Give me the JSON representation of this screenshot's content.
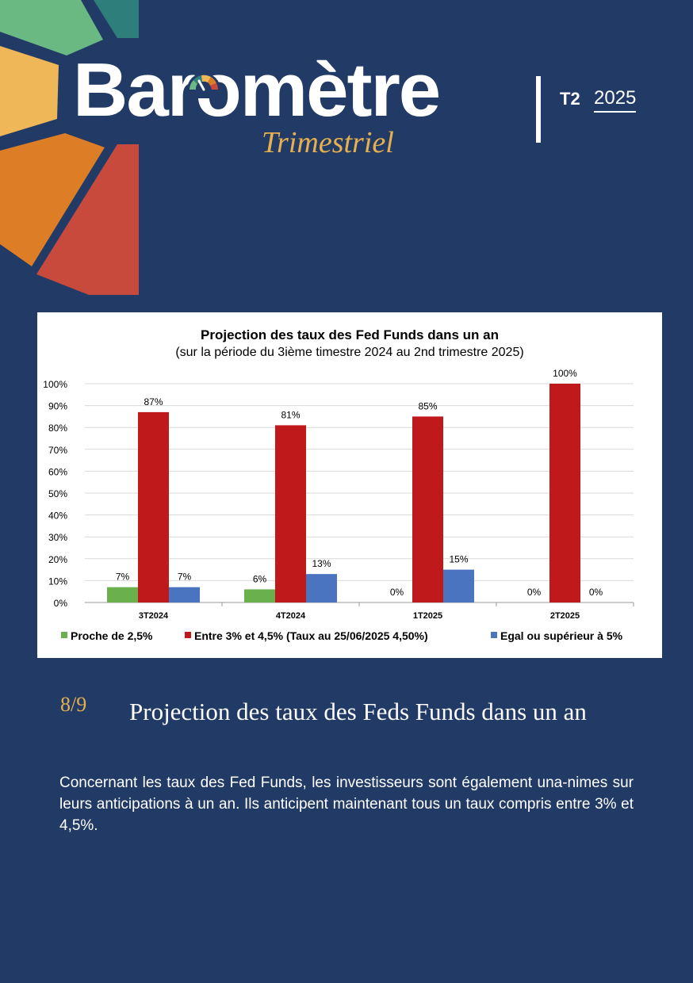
{
  "header": {
    "brand_title": "Baromètre",
    "brand_subtitle": "Trimestriel",
    "quarter": "T2",
    "year": "2025"
  },
  "colors": {
    "background": "#223b66",
    "green": "#6ab04c",
    "red": "#c0191b",
    "blue": "#4a73c0",
    "gold": "#e7b04f",
    "deco_teal": "#2e7f7b",
    "deco_green": "#6ab882",
    "deco_yellow": "#efb757",
    "deco_orange": "#dd7d25",
    "deco_red": "#c84a3d"
  },
  "chart_data": {
    "type": "bar",
    "title": "Projection des taux des Fed Funds dans un an",
    "subtitle": "(sur la période du 3ième timestre 2024 au 2nd trimestre 2025)",
    "categories": [
      "3T2024",
      "4T2024",
      "1T2025",
      "2T2025"
    ],
    "series": [
      {
        "name": "Proche de 2,5%",
        "color": "#6ab04c",
        "values": [
          7,
          6,
          0,
          0
        ],
        "labels": [
          "7%",
          "6%",
          "0%",
          "0%"
        ]
      },
      {
        "name": "Entre 3% et 4,5% (Taux au 25/06/2025 4,50%)",
        "color": "#c0191b",
        "values": [
          87,
          81,
          85,
          100
        ],
        "labels": [
          "87%",
          "81%",
          "85%",
          "100%"
        ]
      },
      {
        "name": "Egal ou supérieur à 5%",
        "color": "#4a73c0",
        "values": [
          7,
          13,
          15,
          0
        ],
        "labels": [
          "7%",
          "13%",
          "15%",
          "0%"
        ]
      }
    ],
    "y_ticks": [
      "0%",
      "10%",
      "20%",
      "30%",
      "40%",
      "50%",
      "60%",
      "70%",
      "80%",
      "90%",
      "100%"
    ],
    "ylim": [
      0,
      100
    ],
    "grid": true,
    "legend_position": "bottom"
  },
  "section": {
    "page": "8/9",
    "title": "Projection des taux des Feds Funds dans un an",
    "body": "Concernant les taux des Fed Funds, les investisseurs sont également una-nimes sur leurs anticipations à un an. Ils anticipent maintenant tous un taux compris entre 3% et 4,5%."
  }
}
